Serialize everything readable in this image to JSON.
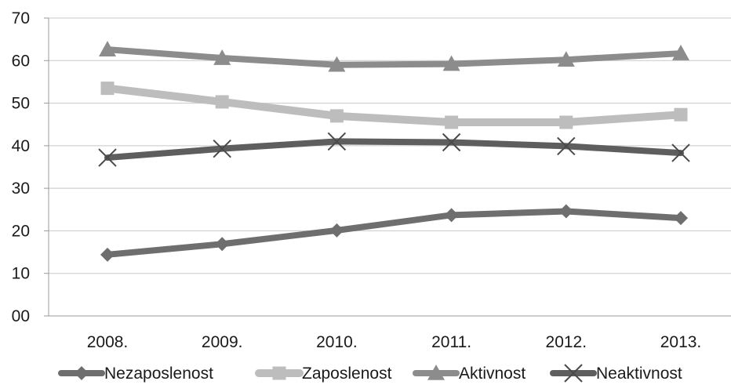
{
  "chart_data": {
    "type": "line",
    "categories": [
      "2008.",
      "2009.",
      "2010.",
      "2011.",
      "2012.",
      "2013."
    ],
    "ylim": [
      0,
      70
    ],
    "yticks": [
      "00",
      "10",
      "20",
      "30",
      "40",
      "50",
      "60",
      "70"
    ],
    "grid": true,
    "legend_position": "bottom",
    "series": [
      {
        "name": "Nezaposlenost",
        "values": [
          14.4,
          16.9,
          20.1,
          23.7,
          24.6,
          23.0
        ],
        "color": "#6e6e6e",
        "marker": "diamond"
      },
      {
        "name": "Zaposlenost",
        "values": [
          53.5,
          50.3,
          47.0,
          45.5,
          45.5,
          47.3
        ],
        "color": "#bdbdbd",
        "marker": "square"
      },
      {
        "name": "Aktivnost",
        "values": [
          62.6,
          60.6,
          59.0,
          59.2,
          60.2,
          61.7
        ],
        "color": "#8c8c8c",
        "marker": "triangle"
      },
      {
        "name": "Neaktivnost",
        "values": [
          37.2,
          39.3,
          41.0,
          40.8,
          39.9,
          38.3
        ],
        "color": "#5e5e5e",
        "marker": "x"
      }
    ]
  }
}
